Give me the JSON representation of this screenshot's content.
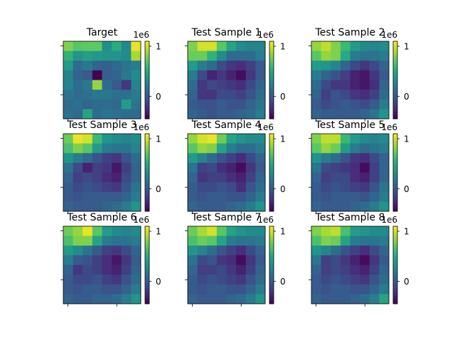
{
  "chart_data": {
    "type": "heatmap",
    "grid_size": 8,
    "colormap": "viridis",
    "color_range": [
      -450000,
      1100000
    ],
    "colorbar": {
      "ticks": [
        0,
        1
      ],
      "tick_labels": [
        "0",
        "1"
      ],
      "offset_label": "1e6"
    },
    "panels": [
      {
        "title": "Target",
        "values": [
          [
            0.8,
            0.7,
            0.72,
            0.72,
            0.32,
            0.52,
            0.28,
            1.05
          ],
          [
            0.55,
            0.35,
            0.42,
            0.38,
            0.35,
            0.35,
            0.3,
            0.9
          ],
          [
            0.4,
            0.1,
            0.18,
            0.05,
            0.02,
            0.1,
            0.15,
            0.2
          ],
          [
            0.25,
            0.05,
            0.0,
            -0.45,
            0.02,
            0.05,
            0.18,
            0.3
          ],
          [
            0.25,
            0.1,
            0.18,
            0.85,
            0.1,
            0.0,
            -0.2,
            0.25
          ],
          [
            0.15,
            0.1,
            0.12,
            0.18,
            0.18,
            0.12,
            0.12,
            0.2
          ],
          [
            0.1,
            0.12,
            0.05,
            0.1,
            0.1,
            0.08,
            0.4,
            0.15
          ],
          [
            0.12,
            0.08,
            0.45,
            0.1,
            0.15,
            0.12,
            0.1,
            0.1
          ]
        ]
      },
      {
        "title": "Test Sample 1",
        "values": [
          [
            0.8,
            1.0,
            1.0,
            0.7,
            0.45,
            0.3,
            0.25,
            0.25
          ],
          [
            0.75,
            0.75,
            0.55,
            0.3,
            0.1,
            0.1,
            0.1,
            0.2
          ],
          [
            0.4,
            0.2,
            0.1,
            -0.1,
            -0.2,
            -0.25,
            -0.15,
            0.0
          ],
          [
            0.2,
            -0.1,
            -0.3,
            -0.2,
            -0.3,
            -0.4,
            -0.2,
            0.0
          ],
          [
            0.1,
            -0.2,
            -0.1,
            -0.15,
            -0.2,
            -0.25,
            -0.1,
            0.05
          ],
          [
            0.05,
            -0.2,
            -0.2,
            -0.1,
            -0.1,
            -0.15,
            -0.05,
            0.1
          ],
          [
            0.0,
            -0.05,
            -0.05,
            0.0,
            -0.05,
            -0.05,
            0.05,
            0.15
          ],
          [
            0.05,
            0.0,
            -0.05,
            0.0,
            0.0,
            0.05,
            0.1,
            0.2
          ]
        ]
      },
      {
        "title": "Test Sample 2",
        "values": [
          [
            0.85,
            0.95,
            0.8,
            0.6,
            0.4,
            0.3,
            0.25,
            0.3
          ],
          [
            0.7,
            0.85,
            0.8,
            0.5,
            0.2,
            0.15,
            0.15,
            0.2
          ],
          [
            0.4,
            0.35,
            0.25,
            0.05,
            -0.1,
            -0.2,
            -0.1,
            0.05
          ],
          [
            0.2,
            0.05,
            -0.05,
            -0.15,
            -0.3,
            -0.35,
            -0.2,
            0.0
          ],
          [
            0.1,
            -0.1,
            -0.2,
            -0.2,
            -0.3,
            -0.35,
            -0.25,
            0.05
          ],
          [
            0.05,
            -0.15,
            -0.05,
            -0.1,
            -0.2,
            -0.25,
            -0.15,
            0.1
          ],
          [
            0.0,
            -0.1,
            -0.05,
            0.0,
            -0.05,
            -0.1,
            0.0,
            0.2
          ],
          [
            0.05,
            0.0,
            0.0,
            0.0,
            0.0,
            0.05,
            0.15,
            0.35
          ]
        ]
      },
      {
        "title": "Test Sample 3",
        "values": [
          [
            0.75,
            1.05,
            1.0,
            0.6,
            0.35,
            0.3,
            0.25,
            0.3
          ],
          [
            0.65,
            0.8,
            0.7,
            0.4,
            0.2,
            0.15,
            0.15,
            0.25
          ],
          [
            0.35,
            0.2,
            0.1,
            -0.05,
            -0.15,
            -0.2,
            -0.05,
            0.1
          ],
          [
            0.15,
            -0.1,
            -0.3,
            -0.15,
            -0.2,
            -0.35,
            -0.15,
            0.05
          ],
          [
            0.05,
            -0.15,
            -0.1,
            -0.15,
            -0.25,
            -0.3,
            -0.1,
            0.05
          ],
          [
            0.0,
            -0.1,
            -0.05,
            -0.1,
            -0.15,
            -0.2,
            -0.05,
            0.15
          ],
          [
            0.0,
            -0.05,
            0.0,
            0.0,
            0.0,
            0.0,
            0.05,
            0.2
          ],
          [
            0.05,
            0.0,
            0.0,
            0.0,
            0.05,
            0.1,
            0.2,
            0.35
          ]
        ]
      },
      {
        "title": "Test Sample 4",
        "values": [
          [
            0.85,
            1.0,
            1.05,
            0.75,
            0.45,
            0.35,
            0.3,
            0.3
          ],
          [
            0.7,
            0.85,
            0.8,
            0.45,
            0.2,
            0.1,
            0.1,
            0.2
          ],
          [
            0.4,
            0.25,
            0.1,
            -0.05,
            -0.15,
            -0.25,
            -0.1,
            0.05
          ],
          [
            0.15,
            -0.15,
            -0.1,
            -0.25,
            -0.3,
            -0.4,
            -0.2,
            0.0
          ],
          [
            0.05,
            -0.2,
            -0.15,
            -0.15,
            -0.25,
            -0.3,
            -0.15,
            0.05
          ],
          [
            0.0,
            -0.1,
            -0.1,
            -0.05,
            -0.1,
            -0.25,
            -0.05,
            0.1
          ],
          [
            0.0,
            -0.05,
            0.0,
            0.0,
            -0.05,
            -0.05,
            0.05,
            0.2
          ],
          [
            0.05,
            0.0,
            0.0,
            0.0,
            0.05,
            0.1,
            0.2,
            0.35
          ]
        ]
      },
      {
        "title": "Test Sample 5",
        "values": [
          [
            0.8,
            0.95,
            0.95,
            0.6,
            0.4,
            0.3,
            0.25,
            0.3
          ],
          [
            0.7,
            0.85,
            0.75,
            0.4,
            0.2,
            0.1,
            0.15,
            0.2
          ],
          [
            0.35,
            0.2,
            0.1,
            -0.05,
            -0.2,
            -0.25,
            -0.1,
            0.05
          ],
          [
            0.15,
            -0.1,
            -0.15,
            -0.2,
            -0.25,
            -0.4,
            -0.15,
            0.05
          ],
          [
            0.05,
            -0.15,
            -0.1,
            -0.1,
            -0.25,
            -0.3,
            -0.15,
            0.05
          ],
          [
            0.0,
            -0.1,
            -0.05,
            -0.1,
            -0.15,
            -0.2,
            -0.05,
            0.15
          ],
          [
            0.0,
            -0.05,
            0.0,
            0.0,
            0.0,
            -0.05,
            0.05,
            0.2
          ],
          [
            0.05,
            0.0,
            0.0,
            0.0,
            0.05,
            0.1,
            0.2,
            0.35
          ]
        ]
      },
      {
        "title": "Test Sample 6",
        "values": [
          [
            0.75,
            0.85,
            1.05,
            0.7,
            0.4,
            0.3,
            0.25,
            0.3
          ],
          [
            0.65,
            0.8,
            0.8,
            0.45,
            0.2,
            0.15,
            0.15,
            0.2
          ],
          [
            0.4,
            0.3,
            0.15,
            0.0,
            -0.15,
            -0.2,
            -0.1,
            0.05
          ],
          [
            0.2,
            0.0,
            -0.05,
            -0.15,
            -0.25,
            -0.35,
            -0.2,
            0.0
          ],
          [
            0.05,
            -0.2,
            -0.1,
            -0.15,
            -0.25,
            -0.3,
            -0.15,
            0.05
          ],
          [
            0.0,
            -0.1,
            -0.1,
            -0.05,
            -0.15,
            -0.2,
            -0.05,
            0.1
          ],
          [
            0.0,
            -0.05,
            0.0,
            0.0,
            -0.05,
            -0.05,
            0.05,
            0.2
          ],
          [
            0.05,
            0.0,
            0.0,
            0.05,
            0.05,
            0.1,
            0.2,
            0.35
          ]
        ]
      },
      {
        "title": "Test Sample 7",
        "values": [
          [
            0.75,
            0.9,
            1.0,
            0.7,
            0.45,
            0.35,
            0.3,
            0.3
          ],
          [
            0.65,
            0.75,
            0.7,
            0.45,
            0.2,
            0.15,
            0.15,
            0.2
          ],
          [
            0.35,
            0.25,
            0.1,
            -0.05,
            -0.15,
            -0.25,
            -0.1,
            0.05
          ],
          [
            0.15,
            -0.1,
            -0.05,
            -0.2,
            -0.25,
            -0.4,
            -0.2,
            0.0
          ],
          [
            0.05,
            -0.15,
            -0.15,
            -0.1,
            -0.2,
            -0.3,
            -0.15,
            0.05
          ],
          [
            0.0,
            -0.1,
            -0.05,
            -0.1,
            -0.15,
            -0.2,
            -0.05,
            0.1
          ],
          [
            0.0,
            -0.05,
            0.0,
            0.0,
            -0.05,
            -0.05,
            0.05,
            0.2
          ],
          [
            0.05,
            0.0,
            0.0,
            0.0,
            0.05,
            0.1,
            0.2,
            0.35
          ]
        ]
      },
      {
        "title": "Test Sample 8",
        "values": [
          [
            0.8,
            0.9,
            0.95,
            0.65,
            0.4,
            0.35,
            0.3,
            0.3
          ],
          [
            0.65,
            0.8,
            0.75,
            0.45,
            0.2,
            0.15,
            0.15,
            0.2
          ],
          [
            0.35,
            0.25,
            0.1,
            -0.05,
            -0.15,
            -0.25,
            -0.1,
            0.05
          ],
          [
            0.15,
            -0.15,
            -0.1,
            -0.2,
            -0.3,
            -0.4,
            -0.2,
            0.0
          ],
          [
            0.05,
            -0.15,
            -0.1,
            -0.15,
            -0.25,
            -0.3,
            -0.15,
            0.05
          ],
          [
            0.0,
            -0.1,
            -0.05,
            -0.1,
            -0.15,
            -0.2,
            -0.05,
            0.1
          ],
          [
            0.0,
            -0.05,
            0.0,
            0.0,
            -0.05,
            -0.05,
            0.05,
            0.2
          ],
          [
            0.05,
            0.0,
            0.0,
            0.0,
            0.05,
            0.1,
            0.2,
            0.45
          ]
        ]
      }
    ]
  }
}
